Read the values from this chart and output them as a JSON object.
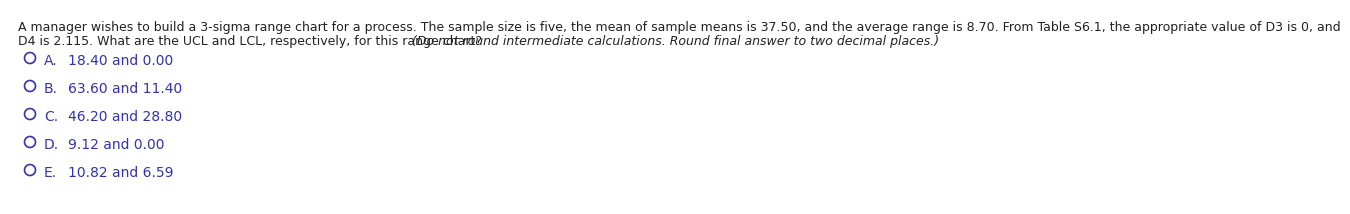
{
  "q_line1": "A manager wishes to build a 3-sigma range chart for a process. The sample size is five, the mean of sample means is 37.50, and the average range is 8.70. From Table S6.1, the appropriate value of D3 is 0, and",
  "q_line2_normal": "D4 is 2.115. What are the UCL and LCL, respectively, for this range chart? ",
  "q_line2_italic": "(Do not round intermediate calculations. Round final answer to two decimal places.)",
  "options": [
    {
      "label": "A.",
      "text": "18.40 and 0.00"
    },
    {
      "label": "B.",
      "text": "63.60 and 11.40"
    },
    {
      "label": "C.",
      "text": "46.20 and 28.80"
    },
    {
      "label": "D.",
      "text": "9.12 and 0.00"
    },
    {
      "label": "E.",
      "text": "10.82 and 6.59"
    }
  ],
  "bg_color": "#ffffff",
  "question_color": "#222222",
  "option_color": "#3333aa",
  "font_size_question": 9.0,
  "font_size_options": 10.0,
  "fig_width": 12.0,
  "fig_height": 1.94
}
